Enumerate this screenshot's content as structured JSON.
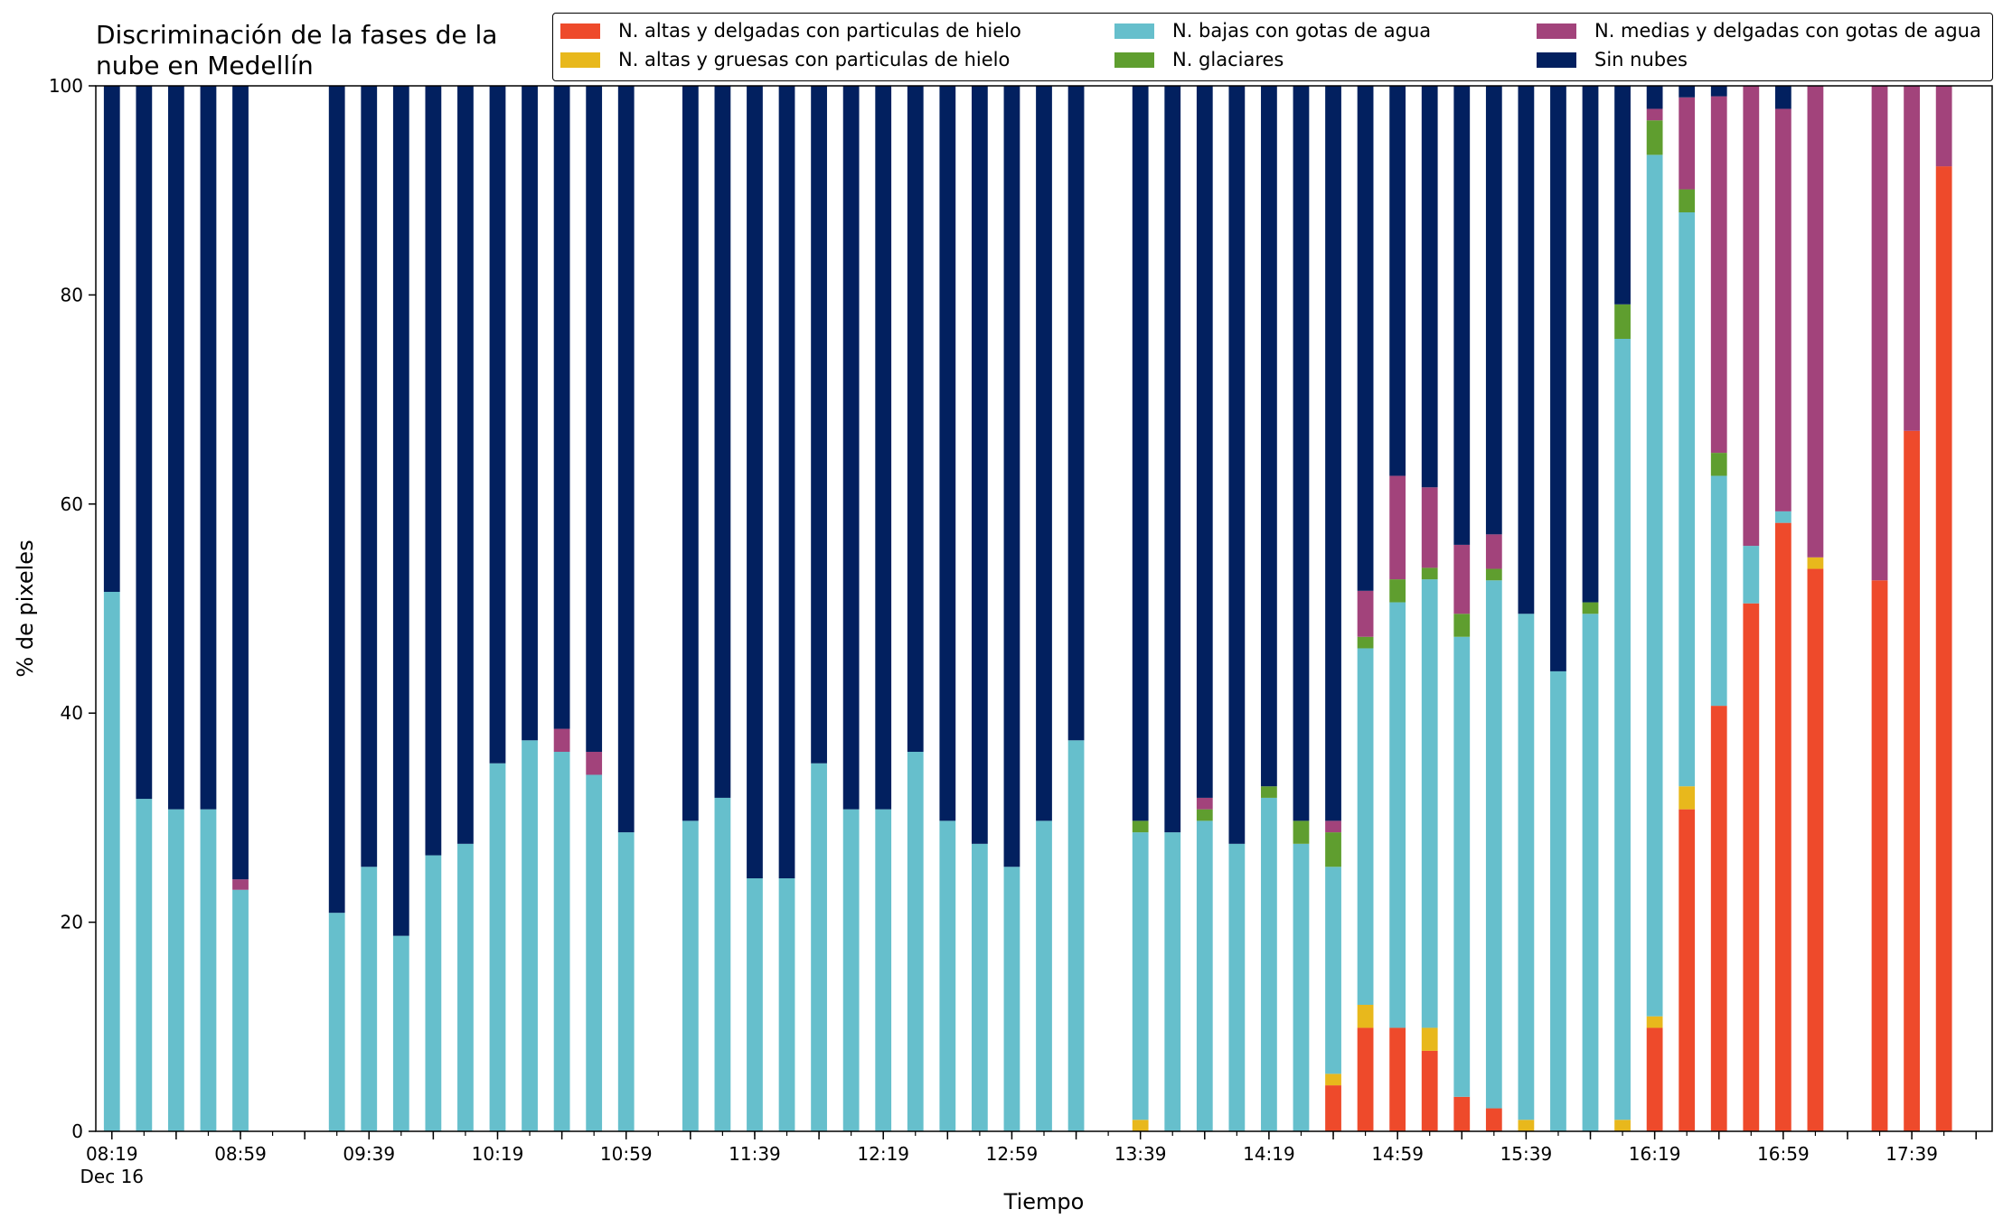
{
  "chart_data": {
    "type": "bar",
    "stacked": true,
    "title": "Discriminación de la fases de la\nnube en Medellín",
    "xlabel": "Tiempo",
    "ylabel": "% de pixeles",
    "ylim": [
      0,
      100
    ],
    "yticks": [
      0,
      20,
      40,
      60,
      80,
      100
    ],
    "x_start": "08:19",
    "x_end": "17:59",
    "x_step_minutes": 10,
    "x_tick_labels": [
      {
        "time": "08:19",
        "label": "08:19",
        "sublabel": "Dec 16"
      },
      {
        "time": "08:59",
        "label": "08:59"
      },
      {
        "time": "09:39",
        "label": "09:39"
      },
      {
        "time": "10:19",
        "label": "10:19"
      },
      {
        "time": "10:59",
        "label": "10:59"
      },
      {
        "time": "11:39",
        "label": "11:39"
      },
      {
        "time": "12:19",
        "label": "12:19"
      },
      {
        "time": "12:59",
        "label": "12:59"
      },
      {
        "time": "13:39",
        "label": "13:39"
      },
      {
        "time": "14:19",
        "label": "14:19"
      },
      {
        "time": "14:59",
        "label": "14:59"
      },
      {
        "time": "15:39",
        "label": "15:39"
      },
      {
        "time": "16:19",
        "label": "16:19"
      },
      {
        "time": "16:59",
        "label": "16:59"
      },
      {
        "time": "17:39",
        "label": "17:39"
      }
    ],
    "legend": {
      "placement": "top-right",
      "columns": 3
    },
    "grid": false,
    "series": [
      {
        "name": "N. altas y delgadas con particulas de hielo",
        "color": "#ee4a2b"
      },
      {
        "name": "N. altas y gruesas con particulas de hielo",
        "color": "#e8b81c"
      },
      {
        "name": "N. bajas con gotas de agua",
        "color": "#66bfcc"
      },
      {
        "name": "N. glaciares",
        "color": "#5f9e2f"
      },
      {
        "name": "N. medias y delgadas con gotas de agua",
        "color": "#a2437b"
      },
      {
        "name": "Sin nubes",
        "color": "#02205f"
      }
    ],
    "bars": [
      {
        "time": "08:19",
        "values": [
          0,
          0,
          51.6,
          0,
          0,
          48.4
        ]
      },
      {
        "time": "08:29",
        "values": [
          0,
          0,
          31.8,
          0,
          0,
          68.2
        ]
      },
      {
        "time": "08:39",
        "values": [
          0,
          0,
          30.8,
          0,
          0,
          69.2
        ]
      },
      {
        "time": "08:49",
        "values": [
          0,
          0,
          30.8,
          0,
          0,
          69.2
        ]
      },
      {
        "time": "08:59",
        "values": [
          0,
          0,
          23.1,
          0,
          1.0,
          75.9
        ]
      },
      {
        "time": "09:29",
        "values": [
          0,
          0,
          20.9,
          0,
          0,
          79.1
        ]
      },
      {
        "time": "09:39",
        "values": [
          0,
          0,
          25.3,
          0,
          0,
          74.7
        ]
      },
      {
        "time": "09:49",
        "values": [
          0,
          0,
          18.7,
          0,
          0,
          81.3
        ]
      },
      {
        "time": "09:59",
        "values": [
          0,
          0,
          26.4,
          0,
          0,
          73.6
        ]
      },
      {
        "time": "10:09",
        "values": [
          0,
          0,
          27.5,
          0,
          0,
          72.5
        ]
      },
      {
        "time": "10:19",
        "values": [
          0,
          0,
          35.2,
          0,
          0,
          64.8
        ]
      },
      {
        "time": "10:29",
        "values": [
          0,
          0,
          37.4,
          0,
          0,
          62.6
        ]
      },
      {
        "time": "10:39",
        "values": [
          0,
          0,
          36.3,
          0,
          2.2,
          61.5
        ]
      },
      {
        "time": "10:49",
        "values": [
          0,
          0,
          34.1,
          0,
          2.2,
          63.7
        ]
      },
      {
        "time": "10:59",
        "values": [
          0,
          0,
          28.6,
          0,
          0,
          71.4
        ]
      },
      {
        "time": "11:19",
        "values": [
          0,
          0,
          29.7,
          0,
          0,
          70.3
        ]
      },
      {
        "time": "11:29",
        "values": [
          0,
          0,
          31.9,
          0,
          0,
          68.1
        ]
      },
      {
        "time": "11:39",
        "values": [
          0,
          0,
          24.2,
          0,
          0,
          75.8
        ]
      },
      {
        "time": "11:49",
        "values": [
          0,
          0,
          24.2,
          0,
          0,
          75.8
        ]
      },
      {
        "time": "11:59",
        "values": [
          0,
          0,
          35.2,
          0,
          0,
          64.8
        ]
      },
      {
        "time": "12:09",
        "values": [
          0,
          0,
          30.8,
          0,
          0,
          69.2
        ]
      },
      {
        "time": "12:19",
        "values": [
          0,
          0,
          30.8,
          0,
          0,
          69.2
        ]
      },
      {
        "time": "12:29",
        "values": [
          0,
          0,
          36.3,
          0,
          0,
          63.7
        ]
      },
      {
        "time": "12:39",
        "values": [
          0,
          0,
          29.7,
          0,
          0,
          70.3
        ]
      },
      {
        "time": "12:49",
        "values": [
          0,
          0,
          27.5,
          0,
          0,
          72.5
        ]
      },
      {
        "time": "12:59",
        "values": [
          0,
          0,
          25.3,
          0,
          0,
          74.7
        ]
      },
      {
        "time": "13:09",
        "values": [
          0,
          0,
          29.7,
          0,
          0,
          70.3
        ]
      },
      {
        "time": "13:19",
        "values": [
          0,
          0,
          37.4,
          0,
          0,
          62.6
        ]
      },
      {
        "time": "13:39",
        "values": [
          0,
          1.1,
          27.5,
          1.1,
          0,
          70.3
        ]
      },
      {
        "time": "13:49",
        "values": [
          0,
          0,
          28.6,
          0,
          0,
          71.4
        ]
      },
      {
        "time": "13:59",
        "values": [
          0,
          0,
          29.7,
          1.1,
          1.1,
          68.1
        ]
      },
      {
        "time": "14:09",
        "values": [
          0,
          0,
          27.5,
          0,
          0,
          72.5
        ]
      },
      {
        "time": "14:19",
        "values": [
          0,
          0,
          31.9,
          1.1,
          0,
          67.0
        ]
      },
      {
        "time": "14:29",
        "values": [
          0,
          0,
          27.5,
          2.2,
          0,
          70.3
        ]
      },
      {
        "time": "14:39",
        "values": [
          4.4,
          1.1,
          19.8,
          3.3,
          1.1,
          70.3
        ]
      },
      {
        "time": "14:49",
        "values": [
          9.9,
          2.2,
          34.1,
          1.1,
          4.4,
          48.3
        ]
      },
      {
        "time": "14:59",
        "values": [
          9.9,
          0,
          40.7,
          2.2,
          9.9,
          37.3
        ]
      },
      {
        "time": "15:09",
        "values": [
          7.7,
          2.2,
          42.9,
          1.1,
          7.7,
          38.4
        ]
      },
      {
        "time": "15:19",
        "values": [
          3.3,
          0,
          44.0,
          2.2,
          6.6,
          43.9
        ]
      },
      {
        "time": "15:29",
        "values": [
          2.2,
          0,
          50.5,
          1.1,
          3.3,
          42.9
        ]
      },
      {
        "time": "15:39",
        "values": [
          0,
          1.1,
          48.4,
          0,
          0,
          50.5
        ]
      },
      {
        "time": "15:49",
        "values": [
          0,
          0,
          44.0,
          0,
          0,
          56.0
        ]
      },
      {
        "time": "15:59",
        "values": [
          0,
          0,
          49.5,
          1.1,
          0,
          49.4
        ]
      },
      {
        "time": "16:09",
        "values": [
          0,
          1.1,
          74.7,
          3.3,
          0,
          20.9
        ]
      },
      {
        "time": "16:19",
        "values": [
          9.9,
          1.1,
          82.4,
          3.3,
          1.1,
          2.2
        ]
      },
      {
        "time": "16:29",
        "values": [
          30.8,
          2.2,
          54.9,
          2.2,
          8.8,
          1.1
        ]
      },
      {
        "time": "16:39",
        "values": [
          40.7,
          0,
          22.0,
          2.2,
          34.1,
          1.0
        ]
      },
      {
        "time": "16:49",
        "values": [
          50.5,
          0,
          5.5,
          0,
          44.0,
          0
        ]
      },
      {
        "time": "16:59",
        "values": [
          58.2,
          0,
          1.1,
          0,
          38.5,
          2.2
        ]
      },
      {
        "time": "17:09",
        "values": [
          53.8,
          1.1,
          0,
          0,
          45.1,
          0
        ]
      },
      {
        "time": "17:29",
        "values": [
          52.7,
          0,
          0,
          0,
          47.3,
          0
        ]
      },
      {
        "time": "17:39",
        "values": [
          67.0,
          0,
          0,
          0,
          33.0,
          0
        ]
      },
      {
        "time": "17:49",
        "values": [
          92.3,
          0,
          0,
          0,
          7.7,
          0
        ]
      }
    ]
  }
}
